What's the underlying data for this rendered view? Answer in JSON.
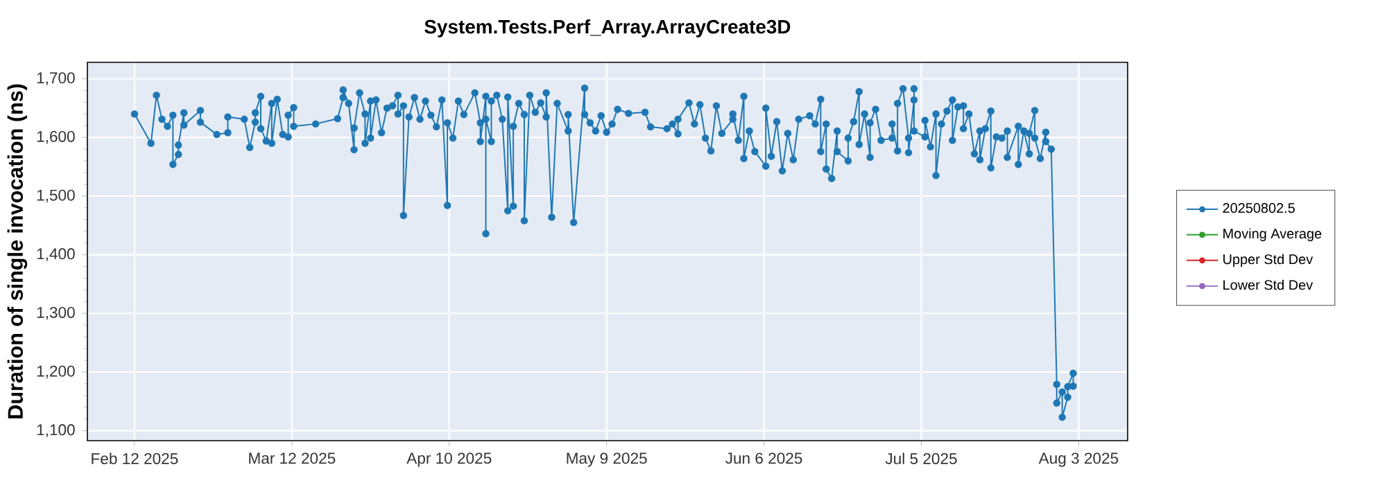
{
  "chart_data": {
    "type": "line",
    "title": "System.Tests.Perf_Array.ArrayCreate3D",
    "ylabel": "Duration of single invocation (ns)",
    "x": [
      "2025-02-12",
      "2025-02-15",
      "2025-02-16",
      "2025-02-17",
      "2025-02-18",
      "2025-02-19",
      "2025-02-19",
      "2025-02-20",
      "2025-02-20",
      "2025-02-21",
      "2025-02-21",
      "2025-02-24",
      "2025-02-24",
      "2025-02-27",
      "2025-03-01",
      "2025-03-01",
      "2025-03-04",
      "2025-03-05",
      "2025-03-06",
      "2025-03-06",
      "2025-03-07",
      "2025-03-07",
      "2025-03-08",
      "2025-03-09",
      "2025-03-09",
      "2025-03-10",
      "2025-03-11",
      "2025-03-12",
      "2025-03-12",
      "2025-03-13",
      "2025-03-13",
      "2025-03-17",
      "2025-03-21",
      "2025-03-22",
      "2025-03-22",
      "2025-03-23",
      "2025-03-24",
      "2025-03-24",
      "2025-03-25",
      "2025-03-26",
      "2025-03-26",
      "2025-03-27",
      "2025-03-27",
      "2025-03-28",
      "2025-03-29",
      "2025-03-30",
      "2025-03-31",
      "2025-04-01",
      "2025-04-01",
      "2025-04-02",
      "2025-04-02",
      "2025-04-03",
      "2025-04-04",
      "2025-04-05",
      "2025-04-06",
      "2025-04-07",
      "2025-04-08",
      "2025-04-09",
      "2025-04-10",
      "2025-04-10",
      "2025-04-11",
      "2025-04-12",
      "2025-04-13",
      "2025-04-15",
      "2025-04-16",
      "2025-04-16",
      "2025-04-17",
      "2025-04-17",
      "2025-04-17",
      "2025-04-18",
      "2025-04-18",
      "2025-04-19",
      "2025-04-20",
      "2025-04-21",
      "2025-04-21",
      "2025-04-22",
      "2025-04-22",
      "2025-04-23",
      "2025-04-24",
      "2025-04-24",
      "2025-04-25",
      "2025-04-26",
      "2025-04-27",
      "2025-04-28",
      "2025-04-28",
      "2025-04-29",
      "2025-04-30",
      "2025-05-02",
      "2025-05-02",
      "2025-05-03",
      "2025-05-05",
      "2025-05-05",
      "2025-05-06",
      "2025-05-07",
      "2025-05-08",
      "2025-05-09",
      "2025-05-10",
      "2025-05-11",
      "2025-05-13",
      "2025-05-16",
      "2025-05-17",
      "2025-05-20",
      "2025-05-21",
      "2025-05-22",
      "2025-05-22",
      "2025-05-24",
      "2025-05-25",
      "2025-05-26",
      "2025-05-27",
      "2025-05-28",
      "2025-05-29",
      "2025-05-30",
      "2025-06-01",
      "2025-06-01",
      "2025-06-02",
      "2025-06-03",
      "2025-06-03",
      "2025-06-04",
      "2025-06-05",
      "2025-06-07",
      "2025-06-07",
      "2025-06-08",
      "2025-06-09",
      "2025-06-10",
      "2025-06-11",
      "2025-06-12",
      "2025-06-13",
      "2025-06-15",
      "2025-06-16",
      "2025-06-17",
      "2025-06-17",
      "2025-06-18",
      "2025-06-18",
      "2025-06-19",
      "2025-06-20",
      "2025-06-20",
      "2025-06-22",
      "2025-06-22",
      "2025-06-23",
      "2025-06-24",
      "2025-06-24",
      "2025-06-25",
      "2025-06-26",
      "2025-06-26",
      "2025-06-27",
      "2025-06-28",
      "2025-06-30",
      "2025-06-30",
      "2025-07-01",
      "2025-07-01",
      "2025-07-02",
      "2025-07-03",
      "2025-07-03",
      "2025-07-04",
      "2025-07-04",
      "2025-07-04",
      "2025-07-06",
      "2025-07-06",
      "2025-07-07",
      "2025-07-08",
      "2025-07-08",
      "2025-07-09",
      "2025-07-10",
      "2025-07-11",
      "2025-07-11",
      "2025-07-12",
      "2025-07-13",
      "2025-07-13",
      "2025-07-14",
      "2025-07-15",
      "2025-07-16",
      "2025-07-16",
      "2025-07-17",
      "2025-07-18",
      "2025-07-18",
      "2025-07-19",
      "2025-07-20",
      "2025-07-21",
      "2025-07-21",
      "2025-07-23",
      "2025-07-23",
      "2025-07-24",
      "2025-07-25",
      "2025-07-25",
      "2025-07-26",
      "2025-07-26",
      "2025-07-27",
      "2025-07-28",
      "2025-07-28",
      "2025-07-29",
      "2025-07-30",
      "2025-07-30",
      "2025-07-31",
      "2025-07-31",
      "2025-08-01",
      "2025-08-01",
      "2025-08-02",
      "2025-08-02"
    ],
    "series": [
      {
        "name": "20250802.5",
        "color": "#1f77b4",
        "values": [
          1640,
          1590,
          1672,
          1631,
          1619,
          1638,
          1554,
          1571,
          1587,
          1642,
          1621,
          1646,
          1626,
          1605,
          1608,
          1635,
          1631,
          1583,
          1626,
          1642,
          1670,
          1615,
          1594,
          1658,
          1590,
          1665,
          1605,
          1601,
          1638,
          1651,
          1619,
          1623,
          1632,
          1668,
          1681,
          1658,
          1579,
          1616,
          1676,
          1640,
          1590,
          1662,
          1599,
          1664,
          1608,
          1650,
          1654,
          1672,
          1640,
          1654,
          1467,
          1635,
          1668,
          1631,
          1662,
          1638,
          1618,
          1664,
          1484,
          1625,
          1599,
          1662,
          1639,
          1676,
          1625,
          1593,
          1670,
          1436,
          1631,
          1593,
          1662,
          1672,
          1631,
          1475,
          1669,
          1483,
          1619,
          1658,
          1639,
          1458,
          1672,
          1643,
          1659,
          1635,
          1676,
          1464,
          1658,
          1611,
          1639,
          1455,
          1684,
          1639,
          1625,
          1611,
          1637,
          1609,
          1623,
          1648,
          1641,
          1643,
          1618,
          1615,
          1623,
          1606,
          1631,
          1659,
          1623,
          1656,
          1599,
          1577,
          1654,
          1607,
          1631,
          1640,
          1595,
          1670,
          1564,
          1611,
          1576,
          1551,
          1650,
          1568,
          1627,
          1543,
          1607,
          1562,
          1631,
          1637,
          1623,
          1665,
          1576,
          1623,
          1546,
          1530,
          1611,
          1576,
          1560,
          1599,
          1627,
          1678,
          1588,
          1640,
          1566,
          1625,
          1648,
          1595,
          1599,
          1623,
          1577,
          1658,
          1683,
          1599,
          1574,
          1664,
          1683,
          1611,
          1601,
          1629,
          1584,
          1640,
          1535,
          1623,
          1645,
          1664,
          1595,
          1652,
          1654,
          1615,
          1640,
          1572,
          1611,
          1562,
          1615,
          1645,
          1548,
          1601,
          1599,
          1611,
          1566,
          1619,
          1554,
          1611,
          1572,
          1607,
          1646,
          1599,
          1564,
          1609,
          1593,
          1580,
          1179,
          1147,
          1166,
          1123,
          1157,
          1175,
          1198,
          1176
        ]
      },
      {
        "name": "Moving Average",
        "color": "#2ca02c",
        "values": [
          null,
          null,
          null,
          null,
          null,
          null,
          null,
          null,
          null,
          null,
          null,
          null,
          null,
          null,
          null,
          null,
          null,
          null,
          null,
          null,
          null,
          null,
          null,
          null,
          null,
          null,
          null,
          null,
          null,
          null,
          null,
          null,
          null,
          null,
          null,
          null,
          null,
          null,
          null,
          null,
          null,
          null,
          null,
          null,
          null,
          null,
          null,
          null,
          null,
          null,
          null,
          null,
          null,
          null,
          null,
          null,
          null,
          null,
          null,
          null,
          null,
          null,
          null,
          null,
          null,
          null,
          null,
          null,
          null,
          null,
          null,
          null,
          null,
          null,
          null,
          null,
          null,
          null,
          null,
          null,
          null,
          null,
          null,
          null,
          null,
          null,
          null,
          null,
          null,
          null,
          null,
          null,
          null,
          null,
          null,
          null,
          null,
          null,
          null,
          null,
          null,
          null,
          null,
          null,
          null,
          null,
          null,
          null,
          null,
          null,
          null,
          null,
          null,
          null,
          null,
          null,
          null,
          null,
          null,
          null,
          null,
          null,
          null,
          null,
          null,
          null,
          null,
          null,
          null,
          null,
          null,
          null,
          null,
          null,
          null,
          null,
          null,
          null,
          null,
          null,
          null,
          null,
          null,
          null,
          null,
          null,
          null,
          null,
          null,
          null,
          null,
          null,
          null,
          null,
          null,
          null,
          null,
          null,
          null,
          null,
          null,
          null,
          null,
          null,
          null,
          null,
          null,
          null,
          null,
          null,
          null,
          null,
          null,
          null,
          null,
          null,
          null,
          null,
          null,
          null,
          null,
          null,
          null,
          null,
          null,
          null,
          null,
          null,
          null,
          null,
          null,
          null,
          null,
          null,
          null,
          null,
          null,
          null
        ]
      },
      {
        "name": "Upper Std Dev",
        "color": "#d62728",
        "values": [
          null,
          null,
          null,
          null,
          null,
          null,
          null,
          null,
          null,
          null,
          null,
          null,
          null,
          null,
          null,
          null,
          null,
          null,
          null,
          null,
          null,
          null,
          null,
          null,
          null,
          null,
          null,
          null,
          null,
          null,
          null,
          null,
          null,
          null,
          null,
          null,
          null,
          null,
          null,
          null,
          null,
          null,
          null,
          null,
          null,
          null,
          null,
          null,
          null,
          null,
          null,
          null,
          null,
          null,
          null,
          null,
          null,
          null,
          null,
          null,
          null,
          null,
          null,
          null,
          null,
          null,
          null,
          null,
          null,
          null,
          null,
          null,
          null,
          null,
          null,
          null,
          null,
          null,
          null,
          null,
          null,
          null,
          null,
          null,
          null,
          null,
          null,
          null,
          null,
          null,
          null,
          null,
          null,
          null,
          null,
          null,
          null,
          null,
          null,
          null,
          null,
          null,
          null,
          null,
          null,
          null,
          null,
          null,
          null,
          null,
          null,
          null,
          null,
          null,
          null,
          null,
          null,
          null,
          null,
          null,
          null,
          null,
          null,
          null,
          null,
          null,
          null,
          null,
          null,
          null,
          null,
          null,
          null,
          null,
          null,
          null,
          null,
          null,
          null,
          null,
          null,
          null,
          null,
          null,
          null,
          null,
          null,
          null,
          null,
          null,
          null,
          null,
          null,
          null,
          null,
          null,
          null,
          null,
          null,
          null,
          null,
          null,
          null,
          null,
          null,
          null,
          null,
          null,
          null,
          null,
          null,
          null,
          null,
          null,
          null,
          null,
          null,
          null,
          null,
          null,
          null,
          null,
          null,
          null,
          null,
          null,
          null,
          null,
          null,
          null,
          null,
          null,
          null,
          null,
          null,
          null,
          null,
          null
        ]
      },
      {
        "name": "Lower Std Dev",
        "color": "#9467bd",
        "values": [
          null,
          null,
          null,
          null,
          null,
          null,
          null,
          null,
          null,
          null,
          null,
          null,
          null,
          null,
          null,
          null,
          null,
          null,
          null,
          null,
          null,
          null,
          null,
          null,
          null,
          null,
          null,
          null,
          null,
          null,
          null,
          null,
          null,
          null,
          null,
          null,
          null,
          null,
          null,
          null,
          null,
          null,
          null,
          null,
          null,
          null,
          null,
          null,
          null,
          null,
          null,
          null,
          null,
          null,
          null,
          null,
          null,
          null,
          null,
          null,
          null,
          null,
          null,
          null,
          null,
          null,
          null,
          null,
          null,
          null,
          null,
          null,
          null,
          null,
          null,
          null,
          null,
          null,
          null,
          null,
          null,
          null,
          null,
          null,
          null,
          null,
          null,
          null,
          null,
          null,
          null,
          null,
          null,
          null,
          null,
          null,
          null,
          null,
          null,
          null,
          null,
          null,
          null,
          null,
          null,
          null,
          null,
          null,
          null,
          null,
          null,
          null,
          null,
          null,
          null,
          null,
          null,
          null,
          null,
          null,
          null,
          null,
          null,
          null,
          null,
          null,
          null,
          null,
          null,
          null,
          null,
          null,
          null,
          null,
          null,
          null,
          null,
          null,
          null,
          null,
          null,
          null,
          null,
          null,
          null,
          null,
          null,
          null,
          null,
          null,
          null,
          null,
          null,
          null,
          null,
          null,
          null,
          null,
          null,
          null,
          null,
          null,
          null,
          null,
          null,
          null,
          null,
          null,
          null,
          null,
          null,
          null,
          null,
          null,
          null,
          null,
          null,
          null,
          null,
          null,
          null,
          null,
          null,
          null,
          null,
          null,
          null,
          null,
          null,
          null,
          null,
          null,
          null,
          null,
          null,
          null,
          null,
          null
        ]
      }
    ],
    "xlim": [
      "2025-02-03T10:00",
      "2025-08-11T22:00"
    ],
    "xticks": [
      {
        "value": "2025-02-12T00:00",
        "label": "Feb 12 2025"
      },
      {
        "value": "2025-03-12T16:00",
        "label": "Mar 12 2025"
      },
      {
        "value": "2025-04-10T08:00",
        "label": "Apr 10 2025"
      },
      {
        "value": "2025-05-09T00:00",
        "label": "May 9 2025"
      },
      {
        "value": "2025-06-06T16:00",
        "label": "Jun 6 2025"
      },
      {
        "value": "2025-07-05T08:00",
        "label": "Jul 5 2025"
      },
      {
        "value": "2025-08-03T00:00",
        "label": "Aug 3 2025"
      }
    ],
    "ylim": [
      1083,
      1728
    ],
    "yticks": [
      {
        "value": 1100,
        "label": "1,100"
      },
      {
        "value": 1200,
        "label": "1,200"
      },
      {
        "value": 1300,
        "label": "1,300"
      },
      {
        "value": 1400,
        "label": "1,400"
      },
      {
        "value": 1500,
        "label": "1,500"
      },
      {
        "value": 1600,
        "label": "1,600"
      },
      {
        "value": 1700,
        "label": "1,700"
      }
    ],
    "grid": true,
    "legend": "right",
    "marker": "circle",
    "line_style": "solid"
  }
}
